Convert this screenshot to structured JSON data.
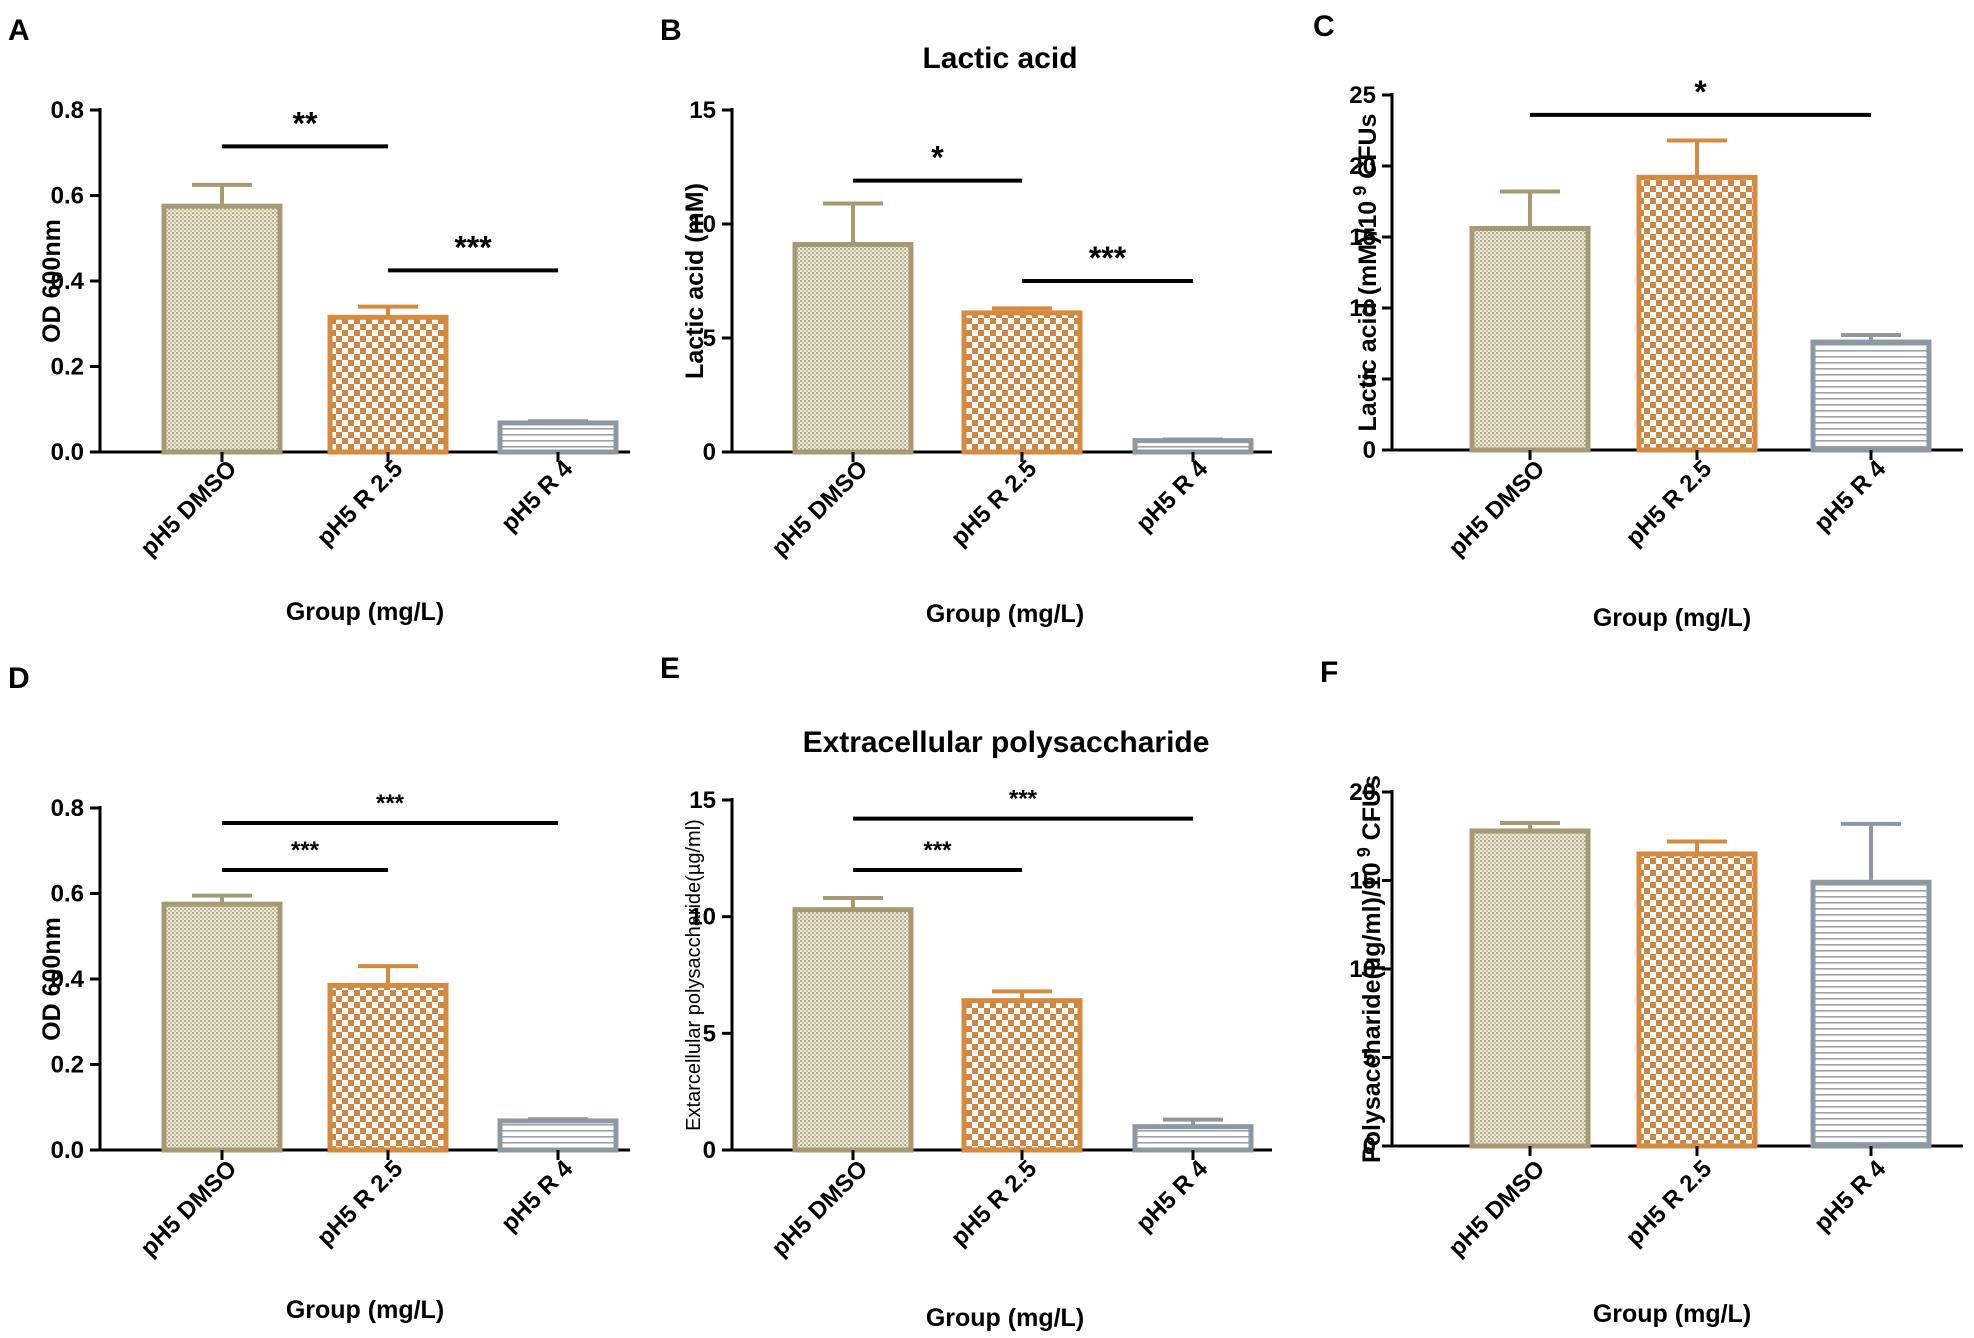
{
  "colors": {
    "gold": "#a79a73",
    "orange": "#d68a3e",
    "gray": "#8e98a2",
    "axis": "#000000"
  },
  "chart_data": [
    {
      "panel": "A",
      "type": "bar",
      "title": "",
      "categories": [
        "pH5 DMSO",
        "pH5 R 2.5",
        "pH5 R 4"
      ],
      "values": [
        0.575,
        0.315,
        0.068
      ],
      "errors": [
        0.05,
        0.025,
        0.004
      ],
      "ylabel": "OD 600nm",
      "xlabel": "Group (mg/L)",
      "ylim": [
        0,
        0.8
      ],
      "yticks": [
        "0.0",
        "0.2",
        "0.4",
        "0.6",
        "0.8"
      ],
      "sig": [
        {
          "from": 0,
          "to": 1,
          "y": 0.715,
          "label": "**"
        },
        {
          "from": 1,
          "to": 2,
          "y": 0.425,
          "label": "***"
        }
      ]
    },
    {
      "panel": "B",
      "type": "bar",
      "title": "Lactic acid",
      "categories": [
        "pH5 DMSO",
        "pH5 R 2.5",
        "pH5 R 4"
      ],
      "values": [
        9.1,
        6.1,
        0.5
      ],
      "errors": [
        1.8,
        0.2,
        0.05
      ],
      "ylabel": "Lactic acid (mM)",
      "xlabel": "Group (mg/L)",
      "ylim": [
        0,
        15
      ],
      "yticks": [
        "0",
        "5",
        "10",
        "15"
      ],
      "sig": [
        {
          "from": 0,
          "to": 1,
          "y": 11.9,
          "label": "*"
        },
        {
          "from": 1,
          "to": 2,
          "y": 7.5,
          "label": "***"
        }
      ]
    },
    {
      "panel": "C",
      "type": "bar",
      "title": "",
      "categories": [
        "pH5 DMSO",
        "pH5 R 2.5",
        "pH5 R 4"
      ],
      "values": [
        15.6,
        19.2,
        7.6
      ],
      "errors": [
        2.6,
        2.6,
        0.5
      ],
      "ylabel": "Lactic acid (mM)/10",
      "ylabel_sup": "9",
      "ylabel_tail": " CFUs",
      "xlabel": "Group (mg/L)",
      "ylim": [
        0,
        25
      ],
      "yticks": [
        "0",
        "5",
        "10",
        "15",
        "20",
        "25"
      ],
      "sig": [
        {
          "from": 0,
          "to": 2,
          "y": 23.6,
          "label": "*"
        }
      ]
    },
    {
      "panel": "D",
      "type": "bar",
      "title": "",
      "categories": [
        "pH5 DMSO",
        "pH5 R 2.5",
        "pH5 R 4"
      ],
      "values": [
        0.575,
        0.385,
        0.068
      ],
      "errors": [
        0.02,
        0.045,
        0.004
      ],
      "ylabel": "OD 600nm",
      "xlabel": "Group (mg/L)",
      "ylim": [
        0,
        0.8
      ],
      "yticks": [
        "0.0",
        "0.2",
        "0.4",
        "0.6",
        "0.8"
      ],
      "sig": [
        {
          "from": 0,
          "to": 1,
          "y": 0.655,
          "label": "***"
        },
        {
          "from": 0,
          "to": 2,
          "y": 0.765,
          "label": "***"
        }
      ]
    },
    {
      "panel": "E",
      "type": "bar",
      "title": "Extracellular polysaccharide",
      "categories": [
        "pH5 DMSO",
        "pH5 R 2.5",
        "pH5 R 4"
      ],
      "values": [
        10.3,
        6.4,
        1.0
      ],
      "errors": [
        0.5,
        0.4,
        0.3
      ],
      "ylabel": "Extarcellular polysaccharide(µg/ml)",
      "xlabel": "Group (mg/L)",
      "ylim": [
        0,
        15
      ],
      "yticks": [
        "0",
        "5",
        "10",
        "15"
      ],
      "sig": [
        {
          "from": 0,
          "to": 1,
          "y": 12.0,
          "label": "***"
        },
        {
          "from": 0,
          "to": 2,
          "y": 14.2,
          "label": "***"
        }
      ]
    },
    {
      "panel": "F",
      "type": "bar",
      "title": "",
      "categories": [
        "pH5 DMSO",
        "pH5 R 2.5",
        "pH5 R 4"
      ],
      "values": [
        17.8,
        16.5,
        14.9
      ],
      "errors": [
        0.45,
        0.7,
        3.3
      ],
      "ylabel": "Polysaccharide(µg/ml)/10",
      "ylabel_sup": "9",
      "ylabel_tail": " CFUs",
      "xlabel": "Group (mg/L)",
      "ylim": [
        0,
        20
      ],
      "yticks": [
        "0",
        "5",
        "10",
        "15",
        "20"
      ],
      "sig": []
    }
  ]
}
